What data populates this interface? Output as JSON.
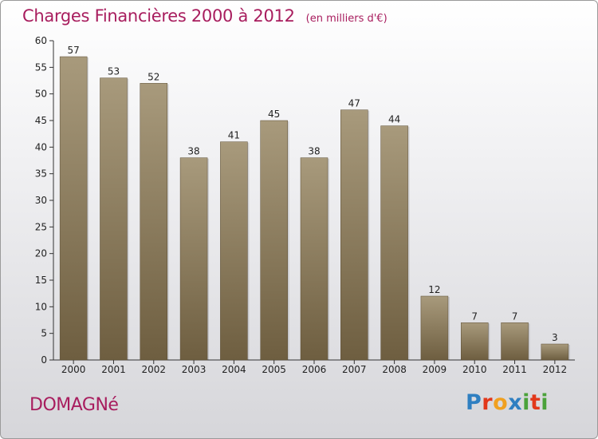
{
  "header": {
    "title": "Charges Financières 2000 à 2012",
    "subtitle": "(en milliers d'€)"
  },
  "commune": "DOMAGNé",
  "logo": {
    "text": "Proxiti",
    "colors": [
      "#2f7fc1",
      "#e2381b",
      "#f0a020",
      "#2f7fc1",
      "#4ba23b",
      "#e2381b",
      "#4ba23b"
    ]
  },
  "colors": {
    "accent": "#a81d5e",
    "bar_top": "#a89a7c",
    "bar_bottom": "#6e5e40"
  },
  "chart_data": {
    "type": "bar",
    "title": "Charges Financières 2000 à 2012",
    "subtitle": "(en milliers d'€)",
    "xlabel": "",
    "ylabel": "",
    "categories": [
      "2000",
      "2001",
      "2002",
      "2003",
      "2004",
      "2005",
      "2006",
      "2007",
      "2008",
      "2009",
      "2010",
      "2011",
      "2012"
    ],
    "values": [
      57,
      53,
      52,
      38,
      41,
      45,
      38,
      47,
      44,
      12,
      7,
      7,
      3
    ],
    "ylim": [
      0,
      60
    ],
    "yticks": [
      0,
      5,
      10,
      15,
      20,
      25,
      30,
      35,
      40,
      45,
      50,
      55,
      60
    ],
    "grid": false,
    "data_labels": true
  }
}
